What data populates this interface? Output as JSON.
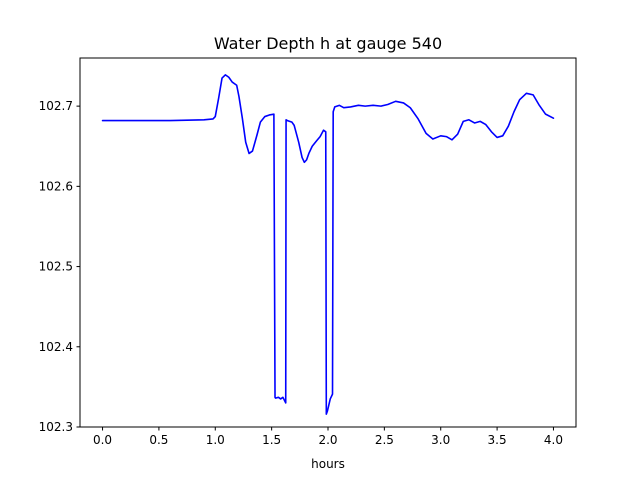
{
  "chart_data": {
    "type": "line",
    "title": "Water Depth h at gauge 540",
    "xlabel": "hours",
    "ylabel": "",
    "xlim": [
      -0.2,
      4.2
    ],
    "ylim": [
      102.3,
      102.76
    ],
    "xticks": [
      0.0,
      0.5,
      1.0,
      1.5,
      2.0,
      2.5,
      3.0,
      3.5,
      4.0
    ],
    "xtick_labels": [
      "0.0",
      "0.5",
      "1.0",
      "1.5",
      "2.0",
      "2.5",
      "3.0",
      "3.5",
      "4.0"
    ],
    "yticks": [
      102.3,
      102.4,
      102.5,
      102.6,
      102.7
    ],
    "ytick_labels": [
      "102.3",
      "102.4",
      "102.5",
      "102.6",
      "102.7"
    ],
    "grid": false,
    "line_color": "#0000ff",
    "series": [
      {
        "x": [
          0.0,
          0.3,
          0.6,
          0.9,
          0.98,
          1.0,
          1.03,
          1.06,
          1.09,
          1.12,
          1.15,
          1.19,
          1.21,
          1.24,
          1.27,
          1.3,
          1.33,
          1.37,
          1.4,
          1.44,
          1.48,
          1.52,
          1.53,
          1.535,
          1.56,
          1.58,
          1.6,
          1.625,
          1.628,
          1.64,
          1.66,
          1.68,
          1.7,
          1.74,
          1.77,
          1.79,
          1.81,
          1.83,
          1.86,
          1.9,
          1.93,
          1.96,
          1.98,
          1.985,
          1.995,
          2.02,
          2.04,
          2.046,
          2.06,
          2.1,
          2.14,
          2.2,
          2.27,
          2.33,
          2.4,
          2.47,
          2.53,
          2.6,
          2.67,
          2.73,
          2.8,
          2.87,
          2.93,
          3.0,
          3.05,
          3.1,
          3.15,
          3.2,
          3.25,
          3.3,
          3.35,
          3.4,
          3.45,
          3.5,
          3.55,
          3.6,
          3.65,
          3.7,
          3.76,
          3.82,
          3.87,
          3.93,
          4.0
        ],
        "y": [
          102.682,
          102.682,
          102.682,
          102.683,
          102.684,
          102.687,
          102.71,
          102.735,
          102.739,
          102.736,
          102.73,
          102.726,
          102.712,
          102.685,
          102.655,
          102.641,
          102.644,
          102.664,
          102.68,
          102.687,
          102.689,
          102.69,
          102.337,
          102.336,
          102.337,
          102.335,
          102.337,
          102.33,
          102.683,
          102.682,
          102.681,
          102.68,
          102.676,
          102.655,
          102.636,
          102.63,
          102.633,
          102.641,
          102.65,
          102.657,
          102.662,
          102.67,
          102.668,
          102.316,
          102.32,
          102.335,
          102.341,
          102.693,
          102.699,
          102.701,
          102.698,
          102.699,
          102.701,
          102.7,
          102.701,
          102.7,
          102.702,
          102.706,
          102.704,
          102.698,
          102.684,
          102.666,
          102.659,
          102.663,
          102.662,
          102.658,
          102.665,
          102.681,
          102.683,
          102.679,
          102.681,
          102.677,
          102.668,
          102.661,
          102.663,
          102.675,
          102.693,
          102.708,
          102.716,
          102.714,
          102.702,
          102.69,
          102.685
        ]
      }
    ]
  }
}
